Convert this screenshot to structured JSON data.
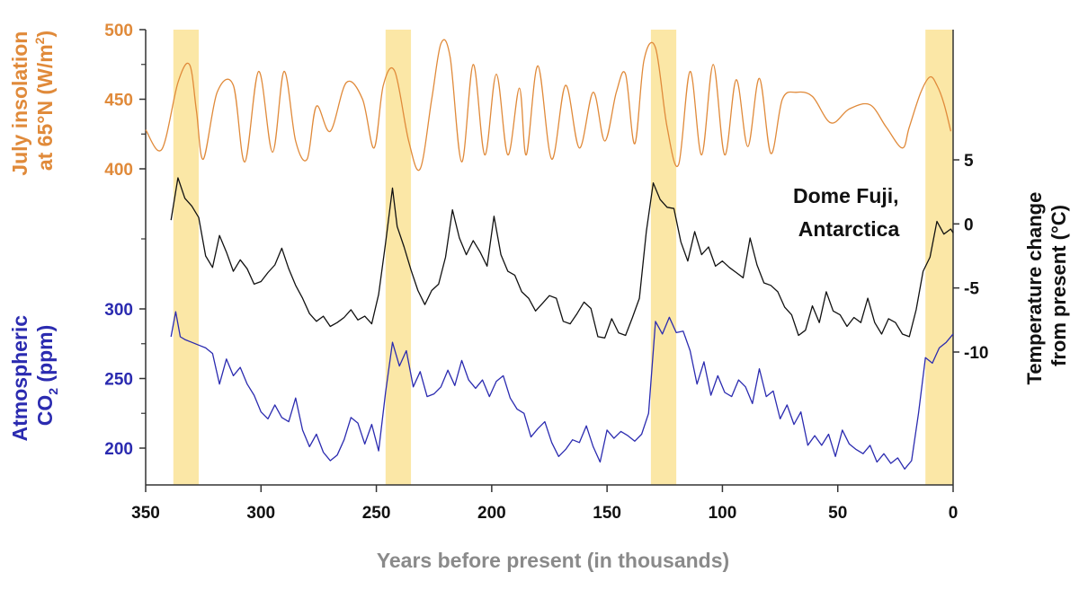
{
  "chart_data": {
    "type": "line",
    "xlabel": "Years before present (in thousands)",
    "x_ticks": [
      350,
      300,
      250,
      200,
      150,
      100,
      50,
      0
    ],
    "xlim": [
      350,
      0
    ],
    "highlight_bands": [
      [
        338,
        327
      ],
      [
        246,
        235
      ],
      [
        131,
        120
      ],
      [
        12,
        0
      ]
    ],
    "insolation": {
      "axis_label_line1": "July insolation",
      "axis_label_line2_prefix": "at 65°N (W/m",
      "axis_label_line2_sup": "2",
      "axis_label_line2_suffix": ")",
      "ticks": [
        500,
        450,
        400
      ],
      "color": "#e08a3a",
      "x": [
        350,
        343,
        336,
        331,
        328,
        325,
        319,
        312,
        307,
        301,
        295,
        290,
        285,
        280,
        276,
        270,
        263,
        256,
        251,
        247,
        242,
        236,
        231,
        226,
        222,
        218,
        213,
        208,
        203,
        198,
        193,
        188,
        185,
        180,
        174,
        168,
        162,
        156,
        151,
        146,
        142,
        138,
        134,
        129,
        124,
        119,
        114,
        109,
        104,
        99,
        94,
        89,
        84,
        79,
        74,
        68,
        61,
        53,
        45,
        36,
        29,
        22,
        19,
        14,
        10,
        7,
        4,
        1
      ],
      "y": [
        428,
        414,
        462,
        475,
        442,
        407,
        455,
        460,
        405,
        470,
        412,
        470,
        420,
        407,
        445,
        427,
        462,
        450,
        415,
        460,
        470,
        420,
        400,
        450,
        490,
        480,
        405,
        475,
        410,
        468,
        410,
        458,
        410,
        474,
        407,
        460,
        415,
        455,
        420,
        455,
        468,
        418,
        478,
        487,
        430,
        403,
        470,
        410,
        475,
        410,
        464,
        416,
        465,
        411,
        450,
        455,
        452,
        433,
        443,
        446,
        430,
        415,
        430,
        455,
        466,
        460,
        447,
        427
      ]
    },
    "temperature": {
      "axis_label_line1": "Temperature change",
      "axis_label_line2": "from present (°C)",
      "ticks": [
        5,
        0,
        -5,
        -10
      ],
      "annotation_line1": "Dome Fuji,",
      "annotation_line2": "Antarctica",
      "color": "#111111",
      "x": [
        339,
        336,
        333,
        330,
        327,
        324,
        321,
        318,
        315,
        312,
        309,
        306,
        303,
        300,
        297,
        294,
        291,
        288,
        285,
        282,
        279,
        276,
        273,
        270,
        267,
        264,
        261,
        258,
        255,
        252,
        249,
        246,
        243,
        241,
        238,
        235,
        232,
        229,
        226,
        223,
        220,
        217,
        214,
        211,
        208,
        205,
        202,
        199,
        196,
        193,
        190,
        187,
        184,
        181,
        178,
        175,
        172,
        169,
        166,
        163,
        160,
        157,
        154,
        151,
        148,
        145,
        142,
        139,
        136,
        133,
        130,
        127,
        124,
        121,
        118,
        115,
        112,
        109,
        106,
        103,
        100,
        97,
        94,
        91,
        88,
        85,
        82,
        79,
        76,
        73,
        70,
        67,
        64,
        61,
        58,
        55,
        52,
        49,
        46,
        43,
        40,
        37,
        34,
        31,
        28,
        25,
        22,
        19,
        16,
        13,
        10,
        7,
        4,
        1,
        0
      ],
      "y": [
        0.3,
        3.6,
        2,
        1.4,
        0.5,
        -2.5,
        -3.4,
        -0.9,
        -2.2,
        -3.7,
        -2.8,
        -3.5,
        -4.7,
        -4.5,
        -3.8,
        -3.2,
        -1.9,
        -3.5,
        -4.8,
        -5.8,
        -7,
        -7.6,
        -7.2,
        -8,
        -7.7,
        -7.3,
        -6.7,
        -7.5,
        -7.2,
        -7.8,
        -5.5,
        -1.5,
        2.8,
        -0.2,
        -1.8,
        -3.6,
        -5.2,
        -6.3,
        -5.2,
        -4.7,
        -2.6,
        1.1,
        -1.1,
        -2.4,
        -1.3,
        -2.2,
        -3.3,
        0.6,
        -2.4,
        -3.7,
        -4,
        -5.3,
        -5.8,
        -6.8,
        -6.2,
        -5.6,
        -5.8,
        -7.6,
        -7.8,
        -7,
        -6.1,
        -6.6,
        -8.8,
        -8.9,
        -7.4,
        -8.5,
        -8.7,
        -7.3,
        -5.8,
        -0.6,
        3.2,
        1.9,
        1.3,
        1.2,
        -1.4,
        -2.9,
        -0.6,
        -2.4,
        -1.8,
        -3.3,
        -2.9,
        -3.4,
        -3.8,
        -4.2,
        -1.1,
        -3.2,
        -4.6,
        -4.8,
        -5.3,
        -6.5,
        -7.1,
        -8.7,
        -8.3,
        -6.4,
        -7.7,
        -5.3,
        -6.8,
        -7.1,
        -8,
        -7.3,
        -7.7,
        -5.8,
        -7.7,
        -8.6,
        -7.4,
        -7.7,
        -8.6,
        -8.8,
        -6.7,
        -3.7,
        -2.6,
        0.2,
        -0.8,
        -0.4,
        -0.7
      ]
    },
    "co2": {
      "axis_label_line1": "Atmospheric",
      "axis_label_line2_prefix": "CO",
      "axis_label_line2_sub": "2",
      "axis_label_line2_suffix": " (ppm)",
      "ticks": [
        300,
        250,
        200
      ],
      "color": "#2b2bb0",
      "x": [
        339,
        337,
        335,
        333,
        330,
        327,
        324,
        321,
        318,
        315,
        312,
        309,
        306,
        303,
        300,
        297,
        294,
        291,
        288,
        285,
        282,
        279,
        276,
        273,
        270,
        267,
        264,
        261,
        258,
        255,
        252,
        249,
        246,
        243,
        240,
        237,
        234,
        231,
        228,
        225,
        222,
        219,
        216,
        213,
        210,
        207,
        204,
        201,
        198,
        195,
        192,
        189,
        186,
        183,
        180,
        177,
        174,
        171,
        168,
        165,
        162,
        159,
        156,
        153,
        150,
        147,
        144,
        141,
        138,
        135,
        132,
        129,
        126,
        123,
        120,
        117,
        114,
        111,
        108,
        105,
        102,
        99,
        96,
        93,
        90,
        87,
        84,
        81,
        78,
        75,
        72,
        69,
        66,
        63,
        60,
        57,
        54,
        51,
        48,
        45,
        42,
        39,
        36,
        33,
        30,
        27,
        24,
        21,
        18,
        15,
        12,
        9,
        6,
        3,
        0
      ],
      "y": [
        280,
        298,
        280,
        278,
        276,
        274,
        272,
        268,
        246,
        264,
        252,
        258,
        246,
        238,
        226,
        221,
        231,
        222,
        219,
        236,
        213,
        201,
        210,
        197,
        191,
        195,
        206,
        222,
        218,
        203,
        217,
        198,
        240,
        276,
        259,
        270,
        244,
        255,
        237,
        239,
        244,
        256,
        245,
        263,
        249,
        243,
        249,
        237,
        248,
        252,
        236,
        228,
        225,
        208,
        214,
        219,
        204,
        194,
        199,
        206,
        204,
        216,
        201,
        190,
        213,
        207,
        212,
        209,
        205,
        210,
        225,
        291,
        282,
        294,
        283,
        284,
        270,
        246,
        262,
        238,
        252,
        240,
        237,
        249,
        244,
        232,
        257,
        237,
        241,
        221,
        231,
        217,
        226,
        202,
        209,
        202,
        210,
        194,
        213,
        203,
        199,
        196,
        202,
        190,
        196,
        189,
        193,
        185,
        191,
        225,
        265,
        261,
        272,
        276,
        282
      ]
    }
  }
}
